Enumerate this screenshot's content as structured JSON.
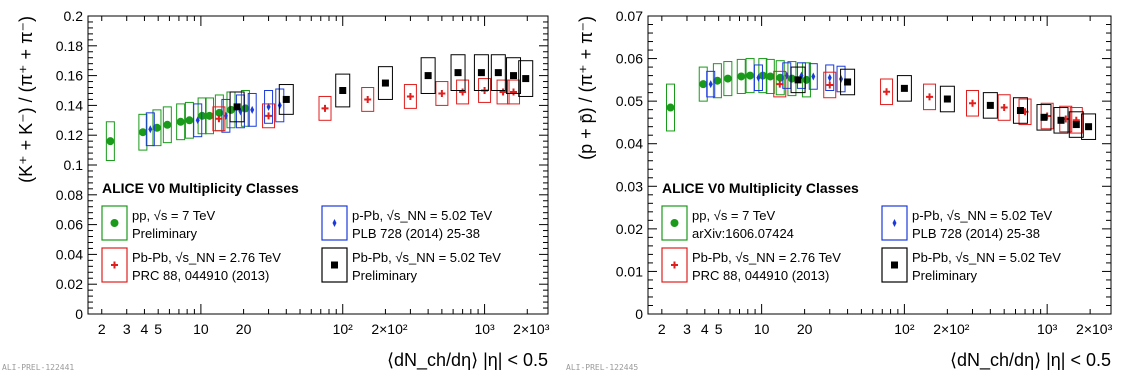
{
  "colors": {
    "pp": "#1a9a1a",
    "ppb": "#1a3adc",
    "pbpb276": "#e01e1e",
    "pbpb502": "#000000"
  },
  "chart_data": [
    {
      "type": "scatter",
      "xscale": "log",
      "xlim": [
        1.6,
        2800
      ],
      "ylim": [
        0,
        0.2
      ],
      "ylabel": "(K⁺ + K⁻) / (π⁺ + π⁻)",
      "xlabel": "⟨dN_ch/dη⟩ |η| < 0.5",
      "yticks": [
        "0",
        "0.02",
        "0.04",
        "0.06",
        "0.08",
        "0.1",
        "0.12",
        "0.14",
        "0.16",
        "0.18",
        "0.2"
      ],
      "xticks": [
        "2",
        "3",
        "4",
        "5",
        "10",
        "20",
        "10²",
        "2×10²",
        "10³",
        "2×10³"
      ],
      "legend_title": "ALICE V0 Multiplicity Classes",
      "tag": "ALI-PREL-122441",
      "series": [
        {
          "name": "pp, √s = 7 TeV",
          "ref": "Preliminary",
          "color_key": "pp",
          "marker": "circle",
          "x": [
            2.3,
            3.9,
            4.9,
            5.8,
            7.2,
            8.3,
            10.2,
            11.5,
            13.5,
            16.3,
            20.6
          ],
          "y": [
            0.116,
            0.122,
            0.125,
            0.127,
            0.129,
            0.13,
            0.133,
            0.133,
            0.135,
            0.137,
            0.138
          ],
          "ey": [
            0.013,
            0.012,
            0.012,
            0.012,
            0.012,
            0.012,
            0.012,
            0.012,
            0.012,
            0.012,
            0.012
          ]
        },
        {
          "name": "p-Pb, √s_NN = 5.02 TeV",
          "ref": "PLB 728 (2014) 25-38",
          "color_key": "ppb",
          "marker": "diamond",
          "x": [
            4.4,
            9.5,
            15.0,
            19.0,
            23.0,
            30.0,
            36.0
          ],
          "y": [
            0.124,
            0.13,
            0.133,
            0.136,
            0.137,
            0.139,
            0.14
          ],
          "ey": [
            0.011,
            0.011,
            0.011,
            0.011,
            0.011,
            0.011,
            0.011
          ]
        },
        {
          "name": "Pb-Pb, √s_NN = 2.76 TeV",
          "ref": "PRC 88, 044910 (2013)",
          "color_key": "pbpb276",
          "marker": "cross",
          "x": [
            13.4,
            30.0,
            75.0,
            150.0,
            300.0,
            500.0,
            700.0,
            1000.0,
            1350.0,
            1600.0
          ],
          "y": [
            0.131,
            0.133,
            0.138,
            0.144,
            0.146,
            0.148,
            0.149,
            0.15,
            0.149,
            0.149
          ],
          "ey": [
            0.008,
            0.008,
            0.008,
            0.008,
            0.008,
            0.008,
            0.008,
            0.008,
            0.008,
            0.008
          ]
        },
        {
          "name": "Pb-Pb, √s_NN = 5.02 TeV",
          "ref": "Preliminary",
          "color_key": "pbpb502",
          "marker": "square",
          "x": [
            18.0,
            40.0,
            100.0,
            200.0,
            400.0,
            650.0,
            950.0,
            1250.0,
            1600.0,
            1950.0
          ],
          "y": [
            0.139,
            0.144,
            0.15,
            0.155,
            0.16,
            0.162,
            0.162,
            0.162,
            0.16,
            0.158
          ],
          "ey": [
            0.01,
            0.01,
            0.011,
            0.011,
            0.012,
            0.012,
            0.012,
            0.012,
            0.012,
            0.012
          ]
        }
      ]
    },
    {
      "type": "scatter",
      "xscale": "log",
      "xlim": [
        1.6,
        2800
      ],
      "ylim": [
        0,
        0.07
      ],
      "ylabel": "(p + p̄) / (π⁺ + π⁻)",
      "xlabel": "⟨dN_ch/dη⟩ |η| < 0.5",
      "yticks": [
        "0",
        "0.01",
        "0.02",
        "0.03",
        "0.04",
        "0.05",
        "0.06",
        "0.07"
      ],
      "xticks": [
        "2",
        "3",
        "4",
        "5",
        "10",
        "20",
        "10²",
        "2×10²",
        "10³",
        "2×10³"
      ],
      "legend_title": "ALICE V0 Multiplicity Classes",
      "tag": "ALI-PREL-122445",
      "series": [
        {
          "name": "pp, √s = 7 TeV",
          "ref": "arXiv:1606.07424",
          "color_key": "pp",
          "marker": "circle",
          "x": [
            2.3,
            3.9,
            4.9,
            5.8,
            7.2,
            8.3,
            10.2,
            11.5,
            13.5,
            16.3,
            20.6
          ],
          "y": [
            0.0485,
            0.054,
            0.0548,
            0.0553,
            0.0558,
            0.056,
            0.056,
            0.0558,
            0.0555,
            0.0553,
            0.055
          ],
          "ey": [
            0.0055,
            0.004,
            0.004,
            0.004,
            0.004,
            0.004,
            0.004,
            0.004,
            0.004,
            0.004,
            0.004
          ]
        },
        {
          "name": "p-Pb, √s_NN = 5.02 TeV",
          "ref": "PLB 728 (2014) 25-38",
          "color_key": "ppb",
          "marker": "diamond",
          "x": [
            4.4,
            9.5,
            15.0,
            19.0,
            23.0,
            30.0,
            36.0
          ],
          "y": [
            0.054,
            0.0555,
            0.056,
            0.056,
            0.0558,
            0.0555,
            0.0552
          ],
          "ey": [
            0.003,
            0.003,
            0.003,
            0.003,
            0.003,
            0.003,
            0.003
          ]
        },
        {
          "name": "Pb-Pb, √s_NN = 2.76 TeV",
          "ref": "PRC 88, 044910 (2013)",
          "color_key": "pbpb276",
          "marker": "cross",
          "x": [
            13.4,
            30.0,
            75.0,
            150.0,
            300.0,
            500.0,
            700.0,
            1000.0,
            1350.0,
            1600.0
          ],
          "y": [
            0.054,
            0.0538,
            0.0522,
            0.051,
            0.0495,
            0.0485,
            0.0475,
            0.0465,
            0.0458,
            0.0455
          ],
          "ey": [
            0.003,
            0.003,
            0.003,
            0.003,
            0.003,
            0.003,
            0.003,
            0.003,
            0.003,
            0.003
          ]
        },
        {
          "name": "Pb-Pb, √s_NN = 5.02 TeV",
          "ref": "Preliminary",
          "color_key": "pbpb502",
          "marker": "square",
          "x": [
            18.0,
            40.0,
            100.0,
            200.0,
            400.0,
            650.0,
            950.0,
            1250.0,
            1600.0,
            1950.0
          ],
          "y": [
            0.055,
            0.0545,
            0.053,
            0.0505,
            0.049,
            0.0478,
            0.0462,
            0.0455,
            0.0445,
            0.044
          ],
          "ey": [
            0.003,
            0.003,
            0.003,
            0.003,
            0.003,
            0.003,
            0.003,
            0.003,
            0.003,
            0.003
          ]
        }
      ]
    }
  ]
}
